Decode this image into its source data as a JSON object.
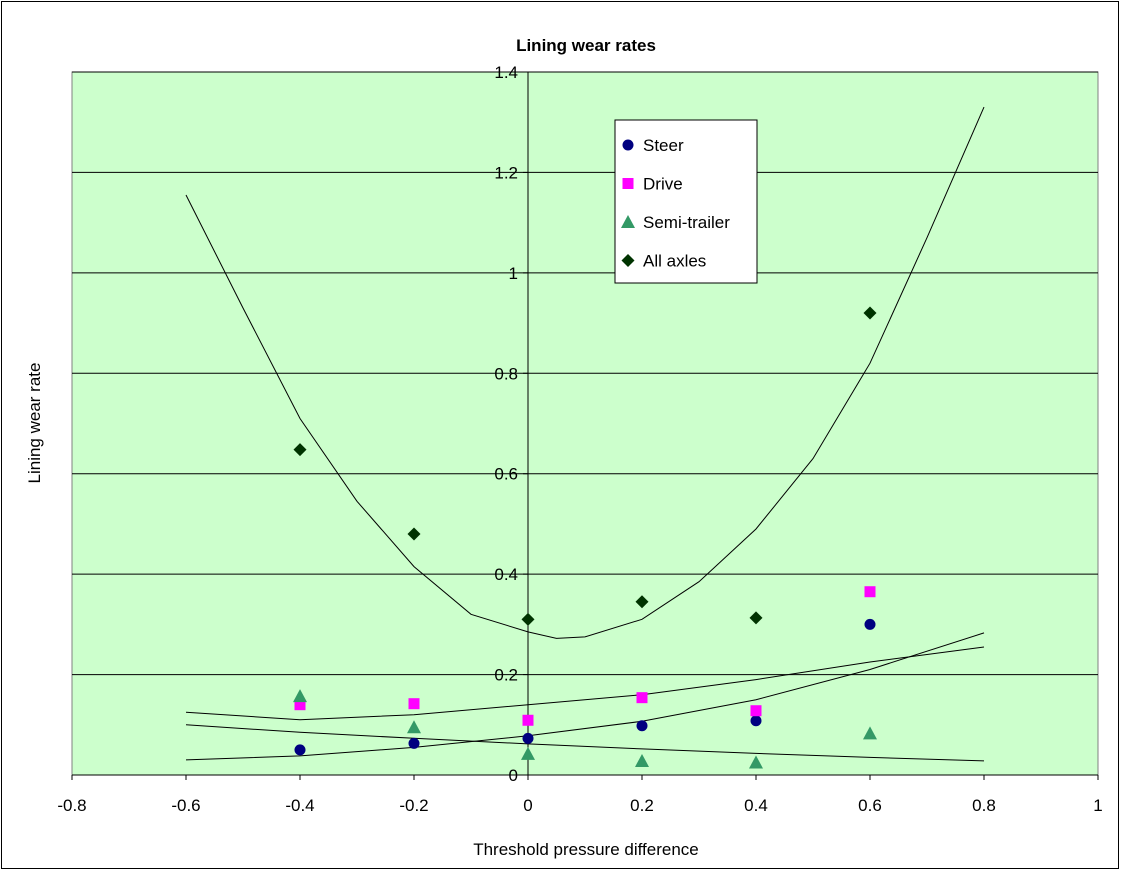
{
  "chart_data": {
    "type": "scatter",
    "title": "Lining wear rates",
    "xlabel": "Threshold pressure difference",
    "ylabel": "Lining wear rate",
    "xlim": [
      -0.8,
      1
    ],
    "ylim": [
      0,
      1.4
    ],
    "x_ticks": [
      "-0.8",
      "-0.6",
      "-0.4",
      "-0.2",
      "0",
      "0.2",
      "0.4",
      "0.6",
      "0.8",
      "1"
    ],
    "y_ticks": [
      "0",
      "0.2",
      "0.4",
      "0.6",
      "0.8",
      "1",
      "1.2",
      "1.4"
    ],
    "x_tick_values": [
      -0.8,
      -0.6,
      -0.4,
      -0.2,
      0,
      0.2,
      0.4,
      0.6,
      0.8,
      1
    ],
    "y_tick_values": [
      0,
      0.2,
      0.4,
      0.6,
      0.8,
      1,
      1.2,
      1.4
    ],
    "grid": true,
    "legend_position": "top-center",
    "plot_background": "#ccffcc",
    "series": [
      {
        "name": "Steer",
        "marker": "circle",
        "color": "#000080",
        "x": [
          -0.4,
          -0.2,
          0,
          0.2,
          0.4,
          0.6
        ],
        "y": [
          0.05,
          0.063,
          0.073,
          0.098,
          0.108,
          0.3
        ]
      },
      {
        "name": "Drive",
        "marker": "square",
        "color": "#ff00ff",
        "x": [
          -0.4,
          -0.2,
          0,
          0.2,
          0.4,
          0.6
        ],
        "y": [
          0.14,
          0.142,
          0.109,
          0.154,
          0.128,
          0.365
        ]
      },
      {
        "name": "Semi-trailer",
        "marker": "triangle",
        "color": "#339966",
        "x": [
          -0.4,
          -0.2,
          0,
          0.2,
          0.4,
          0.6
        ],
        "y": [
          0.157,
          0.095,
          0.042,
          0.028,
          0.025,
          0.083
        ]
      },
      {
        "name": "All axles",
        "marker": "diamond",
        "color": "#003300",
        "x": [
          -0.4,
          -0.2,
          0,
          0.2,
          0.4,
          0.6
        ],
        "y": [
          0.648,
          0.48,
          0.31,
          0.345,
          0.313,
          0.92
        ]
      }
    ],
    "trendlines": [
      {
        "for": "All axles",
        "x": [
          -0.6,
          -0.5,
          -0.4,
          -0.3,
          -0.2,
          -0.1,
          0,
          0.05,
          0.1,
          0.2,
          0.3,
          0.4,
          0.5,
          0.6,
          0.7,
          0.8
        ],
        "y": [
          1.155,
          0.93,
          0.71,
          0.545,
          0.415,
          0.32,
          0.285,
          0.272,
          0.275,
          0.31,
          0.385,
          0.49,
          0.63,
          0.82,
          1.07,
          1.33
        ]
      },
      {
        "for": "Drive",
        "x": [
          -0.6,
          -0.4,
          -0.2,
          0,
          0.2,
          0.4,
          0.6,
          0.8
        ],
        "y": [
          0.125,
          0.11,
          0.12,
          0.14,
          0.16,
          0.19,
          0.225,
          0.255
        ]
      },
      {
        "for": "Steer",
        "x": [
          -0.6,
          -0.4,
          -0.2,
          0,
          0.2,
          0.4,
          0.6,
          0.8
        ],
        "y": [
          0.03,
          0.038,
          0.055,
          0.078,
          0.107,
          0.15,
          0.21,
          0.283
        ]
      },
      {
        "for": "Semi-trailer",
        "x": [
          -0.6,
          -0.4,
          -0.2,
          0,
          0.2,
          0.4,
          0.6,
          0.8
        ],
        "y": [
          0.1,
          0.085,
          0.073,
          0.062,
          0.052,
          0.043,
          0.035,
          0.028
        ]
      }
    ]
  }
}
